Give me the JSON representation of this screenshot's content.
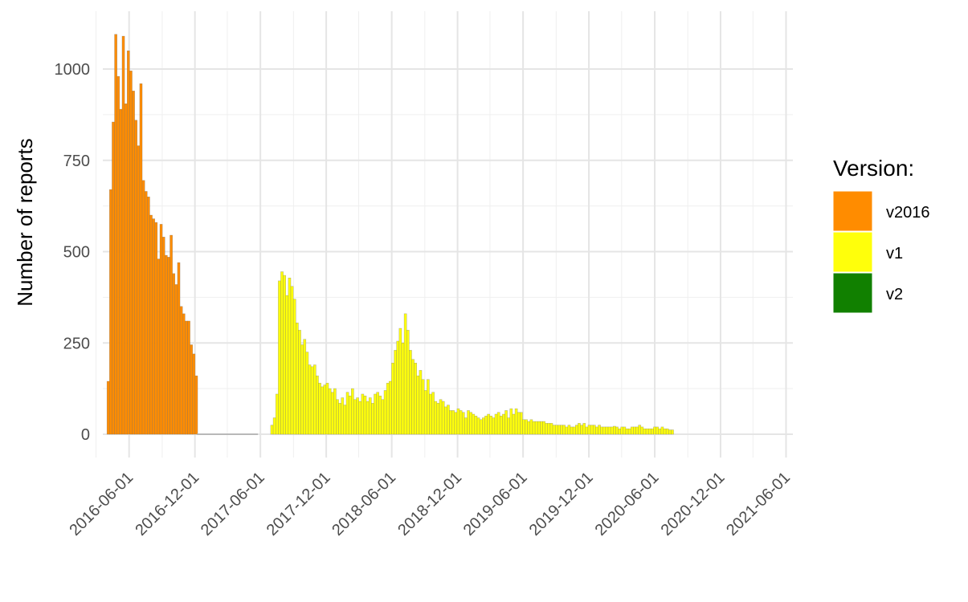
{
  "chart_data": {
    "type": "bar",
    "stacked": true,
    "ylabel": "Number of reports",
    "xlabel": "",
    "ylim": [
      0,
      1125
    ],
    "y_ticks": [
      0,
      250,
      500,
      750,
      1000
    ],
    "y_tick_labels": [
      "0",
      "250",
      "500",
      "750",
      "1000"
    ],
    "xlim": [
      "2016-03-20",
      "2021-06-20"
    ],
    "x_ticks": [
      "2016-06-01",
      "2016-12-01",
      "2017-06-01",
      "2017-12-01",
      "2018-06-01",
      "2018-12-01",
      "2019-06-01",
      "2019-12-01",
      "2020-06-01",
      "2020-12-01",
      "2021-06-01"
    ],
    "x_tick_labels": [
      "2016-06-01",
      "2016-12-01",
      "2017-06-01",
      "2017-12-01",
      "2018-06-01",
      "2018-12-01",
      "2019-06-01",
      "2019-12-01",
      "2020-06-01",
      "2020-12-01",
      "2021-06-01"
    ],
    "x_minor_ticks": [
      "2016-03-01",
      "2016-09-01",
      "2017-03-01",
      "2017-09-01",
      "2018-03-01",
      "2018-09-01",
      "2019-03-01",
      "2019-09-01",
      "2020-03-01",
      "2020-09-01",
      "2021-03-01"
    ],
    "y_minor_ticks": [
      125,
      375,
      625,
      875
    ],
    "grid": true,
    "legend": {
      "title": "Version:",
      "position": "right"
    },
    "bin": "weekly",
    "series": [
      {
        "name": "v2016",
        "color": "#FF8C00",
        "start": "2016-04-04",
        "values": [
          145,
          670,
          855,
          1095,
          980,
          890,
          1090,
          905,
          1050,
          995,
          940,
          860,
          790,
          960,
          695,
          665,
          650,
          600,
          590,
          580,
          480,
          575,
          540,
          490,
          485,
          545,
          440,
          410,
          470,
          350,
          330,
          310,
          310,
          245,
          220,
          160
        ]
      },
      {
        "name": "v1",
        "color": "#FFFF0B",
        "start": "2016-12-12",
        "values": [
          0,
          0,
          0,
          0,
          0,
          0,
          0,
          0,
          0,
          0,
          0,
          0,
          0,
          0,
          0,
          0,
          0,
          0,
          0,
          0,
          0,
          0,
          0,
          0,
          0,
          0,
          0,
          0,
          0,
          25,
          45,
          110,
          420,
          445,
          435,
          380,
          428,
          405,
          370,
          305,
          285,
          245,
          260,
          225,
          190,
          185,
          190,
          160,
          140,
          130,
          135,
          140,
          125,
          115,
          125,
          95,
          85,
          100,
          80,
          115,
          105,
          125,
          95,
          100,
          90,
          110,
          105,
          90,
          100,
          85,
          110,
          115,
          105,
          95,
          120,
          140,
          145,
          195,
          230,
          255,
          290,
          250,
          330,
          285,
          230,
          205,
          195,
          160,
          175,
          150,
          120,
          150,
          110,
          115,
          90,
          85,
          95,
          90,
          75,
          80,
          65,
          65,
          60,
          70,
          65,
          60,
          45,
          65,
          60,
          55,
          50,
          45,
          40,
          45,
          50,
          55,
          50,
          45,
          55,
          60,
          50,
          55,
          65,
          45,
          70,
          55,
          70,
          60,
          60,
          40,
          40,
          35,
          40,
          35,
          35,
          35,
          35,
          35,
          30,
          30,
          30,
          25,
          25,
          25,
          25,
          25,
          20,
          25,
          20,
          20,
          25,
          30,
          25,
          30,
          20,
          25,
          25,
          25,
          20,
          25,
          20,
          20,
          20,
          20,
          20,
          22,
          20,
          15,
          20,
          20,
          15,
          15,
          20,
          20,
          20,
          25,
          20,
          15,
          15,
          15,
          15,
          20,
          20,
          15,
          20,
          15,
          15,
          12,
          12
        ]
      },
      {
        "name": "v2",
        "color": "#118000",
        "start": "2016-12-12",
        "values": [
          0,
          0,
          0,
          0,
          0,
          0,
          0,
          0,
          0,
          0,
          0,
          0,
          0,
          0,
          0,
          0,
          0,
          0,
          0,
          0,
          0,
          0,
          0,
          0,
          0,
          0,
          0,
          0,
          0,
          0,
          0,
          0,
          0,
          0,
          0,
          0,
          0,
          0,
          0,
          0,
          0,
          0,
          0,
          0,
          0,
          0,
          0,
          0,
          0,
          0,
          0,
          0,
          0,
          0,
          0,
          0,
          0,
          0,
          0,
          0,
          0,
          0,
          0,
          0,
          0,
          0,
          0,
          0,
          0,
          0,
          0,
          0,
          0,
          0,
          0,
          0,
          0,
          0,
          0,
          0,
          0,
          0,
          0,
          0,
          0,
          0,
          0,
          0,
          0,
          0,
          0,
          0,
          0,
          0,
          0,
          0,
          0,
          0,
          0,
          0,
          0,
          0,
          0,
          0,
          0,
          0,
          0,
          0,
          0,
          0,
          0,
          0,
          0,
          0,
          0,
          0,
          0,
          0,
          0,
          0,
          0,
          0,
          0,
          0,
          0,
          0,
          0,
          0,
          0,
          0,
          0,
          0,
          0,
          0,
          0,
          0,
          0,
          0,
          0,
          0,
          0,
          0,
          0,
          0,
          0,
          0,
          0,
          0,
          0,
          0,
          0,
          0,
          0,
          0,
          0,
          0,
          0,
          0,
          0,
          0,
          0,
          0,
          0,
          0,
          0,
          0,
          0,
          0,
          0,
          0,
          0,
          0,
          0,
          0,
          0,
          0,
          0,
          0,
          0,
          0,
          0,
          0,
          0,
          0,
          0,
          0,
          0,
          0,
          0,
          0,
          0,
          0,
          0,
          0,
          0,
          0,
          0,
          0,
          0,
          0,
          0,
          0,
          0,
          0,
          0,
          0,
          0,
          0,
          0,
          0,
          0,
          0,
          0,
          0,
          0,
          0,
          0,
          0,
          0,
          0,
          0,
          0,
          0,
          0,
          0,
          0,
          0,
          0,
          0,
          0,
          0,
          0,
          0,
          0,
          0,
          0,
          0,
          0,
          0,
          0,
          0,
          0,
          0,
          0,
          0,
          0,
          0,
          0,
          0,
          0,
          0,
          0,
          0,
          0,
          0,
          0,
          0,
          0,
          0,
          0,
          0,
          0,
          0,
          0,
          0,
          0,
          0,
          0,
          0,
          0,
          0,
          0,
          0
        ]
      }
    ]
  },
  "colors": {
    "v2016": "#FF8C00",
    "v1": "#FFFF0B",
    "v2": "#118000",
    "gridline": "#e5e5e5",
    "baseline": "#aaaaaa"
  }
}
